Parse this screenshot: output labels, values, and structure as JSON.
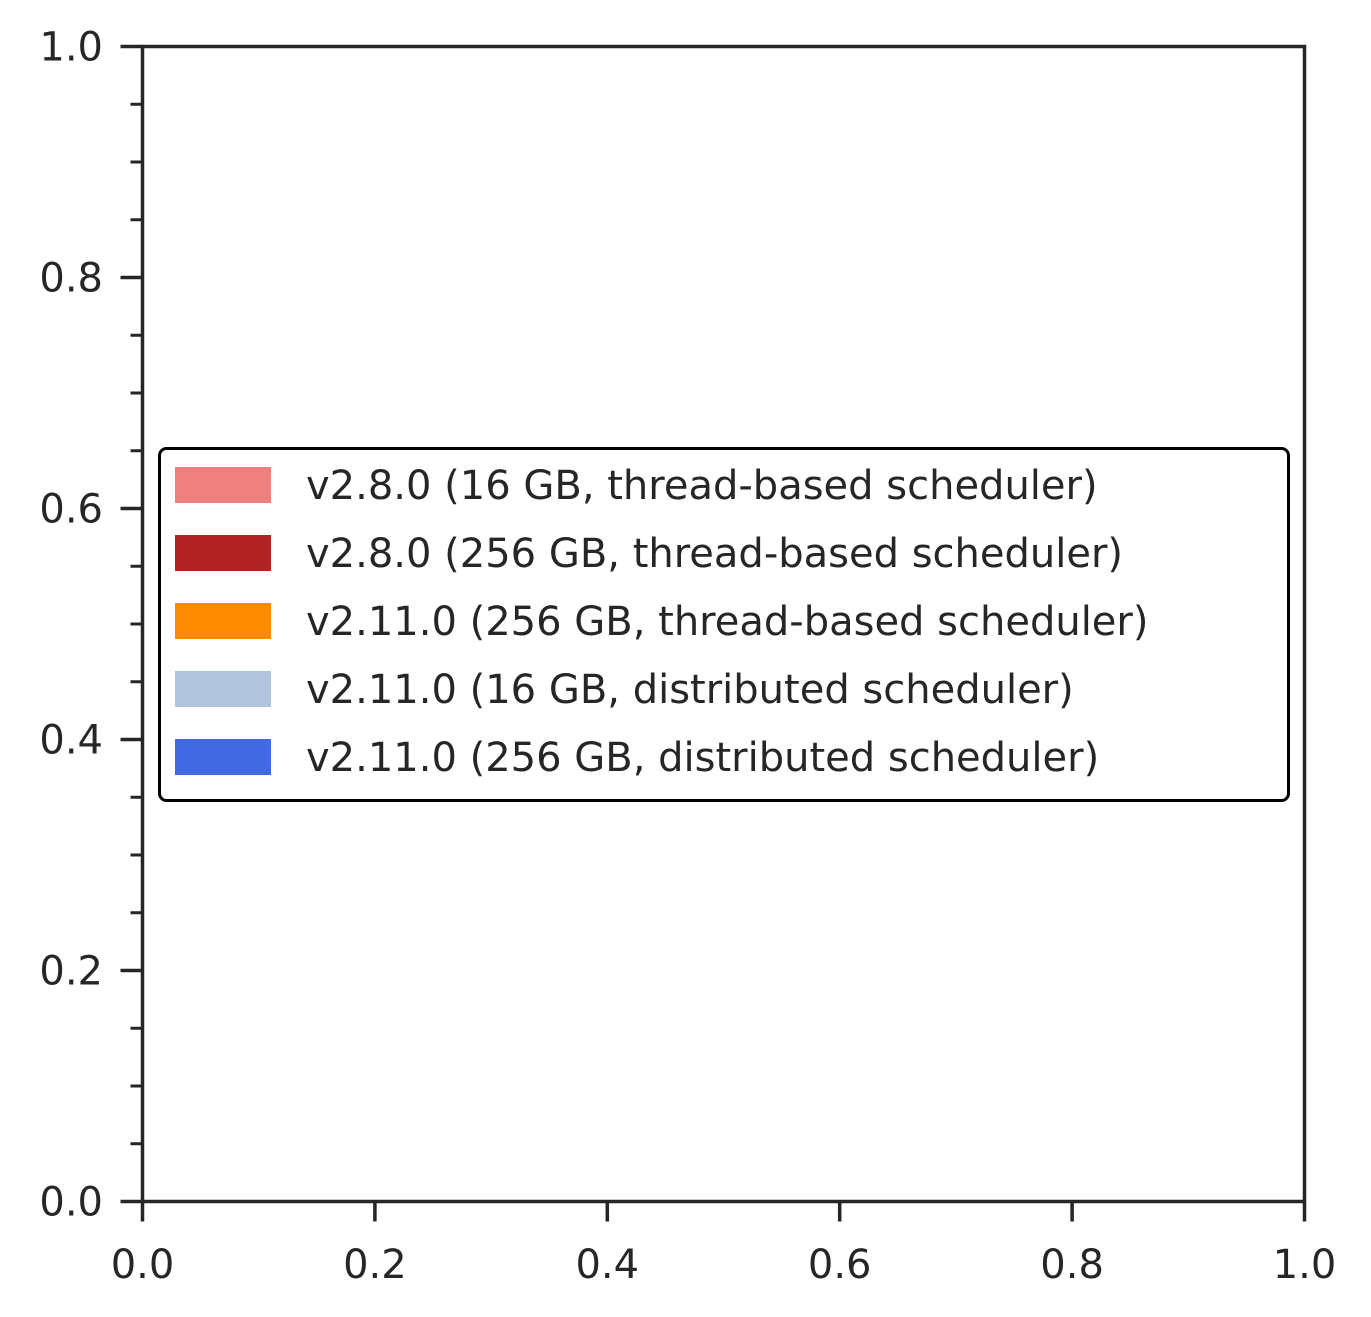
{
  "chart_data": {
    "type": "bar",
    "title": "",
    "xlabel": "",
    "ylabel": "",
    "xlim": [
      0.0,
      1.0
    ],
    "ylim": [
      0.0,
      1.0
    ],
    "x_ticks": [
      "0.0",
      "0.2",
      "0.4",
      "0.6",
      "0.8",
      "1.0"
    ],
    "y_ticks": [
      "0.0",
      "0.2",
      "0.4",
      "0.6",
      "0.8",
      "1.0"
    ],
    "x_tick_values": [
      0.0,
      0.2,
      0.4,
      0.6,
      0.8,
      1.0
    ],
    "y_tick_values": [
      0.0,
      0.2,
      0.4,
      0.6,
      0.8,
      1.0
    ],
    "y_minor_step": 0.05,
    "grid": false,
    "legend_placement": "center-left",
    "series": [
      {
        "name": "v2.8.0 (16 GB, thread-based scheduler)",
        "color": "#f08080",
        "values": []
      },
      {
        "name": "v2.8.0 (256 GB, thread-based scheduler)",
        "color": "#b22222",
        "values": []
      },
      {
        "name": "v2.11.0 (256 GB, thread-based scheduler)",
        "color": "#ff8c00",
        "values": []
      },
      {
        "name": "v2.11.0 (16 GB, distributed scheduler)",
        "color": "#b0c4de",
        "values": []
      },
      {
        "name": "v2.11.0 (256 GB, distributed scheduler)",
        "color": "#4169e1",
        "values": []
      }
    ]
  }
}
